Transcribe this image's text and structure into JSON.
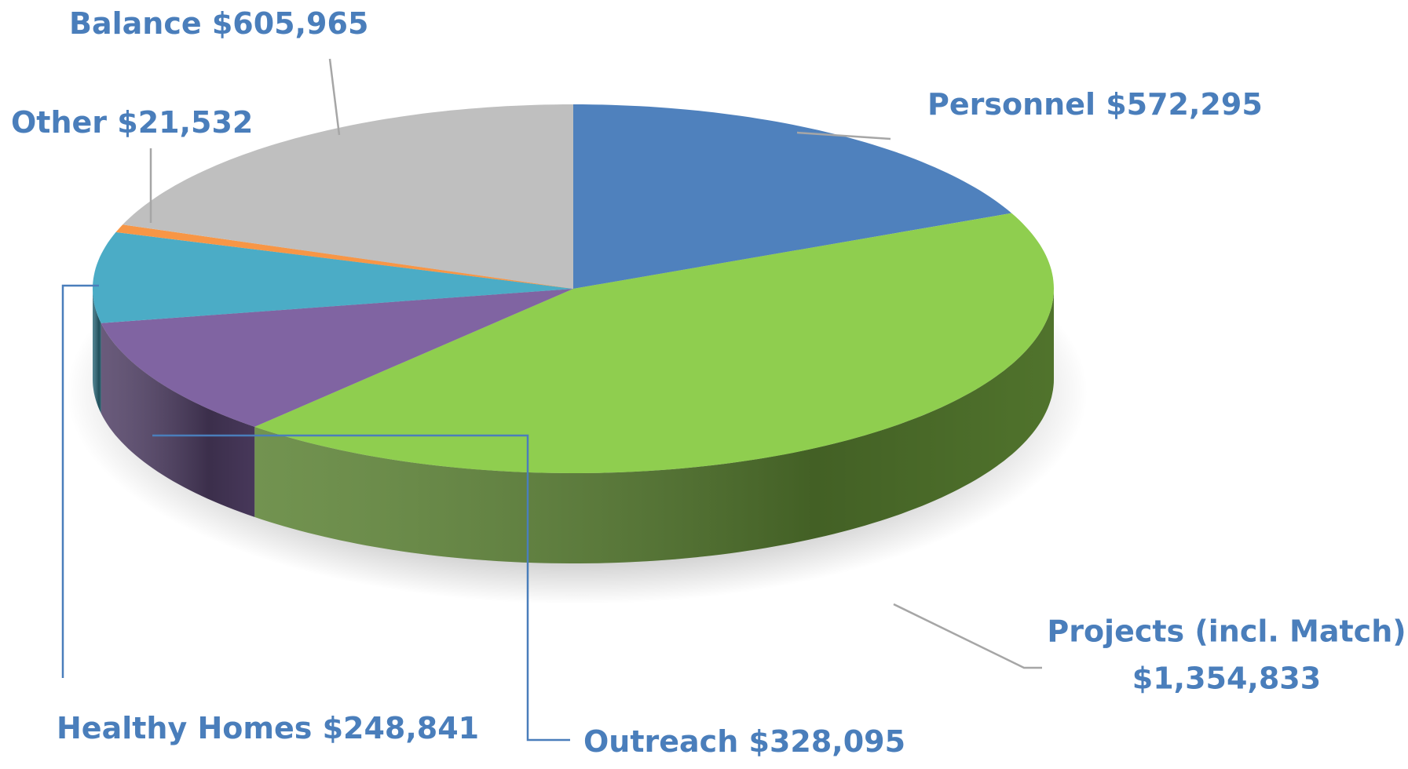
{
  "chart_data": {
    "type": "pie3d",
    "categories": [
      "Personnel",
      "Projects (incl. Match)",
      "Outreach",
      "Healthy Homes",
      "Other",
      "Balance"
    ],
    "values": [
      572295,
      1354833,
      328095,
      248841,
      21532,
      605965
    ],
    "value_labels": [
      "$572,295",
      "$1,354,833",
      "$328,095",
      "$248,841",
      "$21,532",
      "$605,965"
    ],
    "colors": [
      "#4f81bd",
      "#8fce4f",
      "#8064a2",
      "#4bacc6",
      "#f79646",
      "#bfbfbf"
    ]
  }
}
